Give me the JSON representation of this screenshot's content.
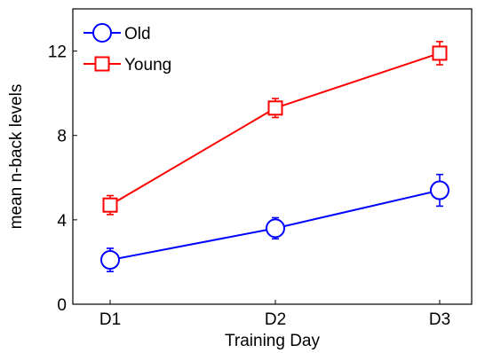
{
  "chart_data": {
    "type": "line",
    "title": "",
    "xlabel": "Training Day",
    "ylabel": "mean n-back levels",
    "categories": [
      "D1",
      "D2",
      "D3"
    ],
    "ylim": [
      0,
      14
    ],
    "yticks": [
      0,
      4,
      8,
      12
    ],
    "grid": false,
    "legend": "top-left",
    "series": [
      {
        "name": "Old",
        "color": "#0000ff",
        "marker": "circle",
        "values": [
          2.1,
          3.6,
          5.4
        ],
        "errors": [
          0.55,
          0.5,
          0.75
        ]
      },
      {
        "name": "Young",
        "color": "#ff0000",
        "marker": "square",
        "values": [
          4.7,
          9.3,
          11.9
        ],
        "errors": [
          0.45,
          0.45,
          0.55
        ]
      }
    ]
  }
}
